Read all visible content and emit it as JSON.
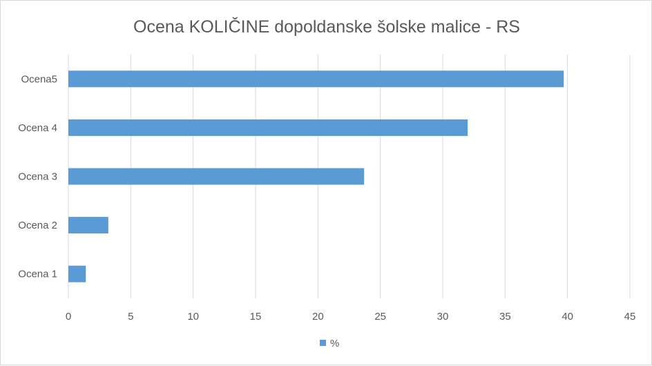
{
  "chart_data": {
    "type": "bar",
    "orientation": "horizontal",
    "title": "Ocena KOLIČINE dopoldanske šolske malice - RS",
    "categories": [
      "Ocena5",
      "Ocena 4",
      "Ocena 3",
      "Ocena 2",
      "Ocena 1"
    ],
    "series": [
      {
        "name": "%",
        "values": [
          39.7,
          32.0,
          23.7,
          3.2,
          1.4
        ],
        "color": "#5b9bd5"
      }
    ],
    "xlim": [
      0,
      45
    ],
    "xticks": [
      0,
      5,
      10,
      15,
      20,
      25,
      30,
      35,
      40,
      45
    ],
    "grid": true,
    "legend": "bottom"
  }
}
